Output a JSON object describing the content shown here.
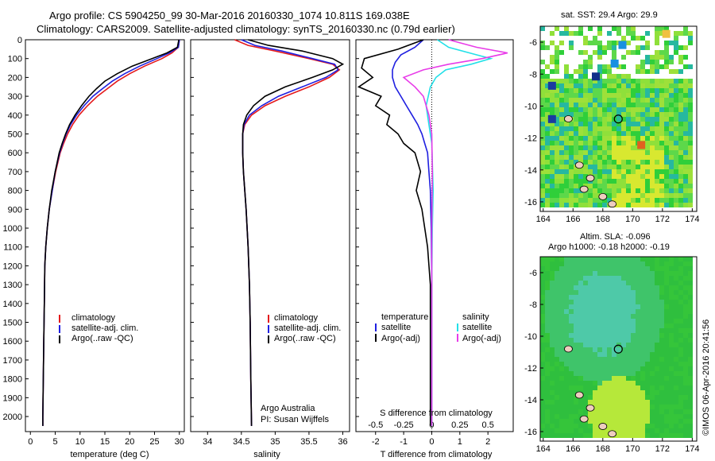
{
  "header": {
    "line1": "Argo profile: CS 5904250_99 30-Mar-2016 20160330_1074 10.811S 169.038E",
    "line2": "Climatology: CARS2009. Satellite-adjusted climatology: synTS_20160330.nc (0.79d earlier)"
  },
  "colors": {
    "climatology": "#e41a1c",
    "satellite": "#1f1fe0",
    "argo": "#000000",
    "sal_satellite": "#22e0e8",
    "sal_argo": "#e83ce8"
  },
  "chart_data": [
    {
      "type": "line",
      "xlabel": "temperature (deg C)",
      "ylabel": "",
      "xlim": [
        -1,
        31
      ],
      "ylim": [
        2080,
        0
      ],
      "xticks": [
        0,
        5,
        10,
        15,
        20,
        25,
        30
      ],
      "yticks": [
        0,
        100,
        200,
        300,
        400,
        500,
        600,
        700,
        800,
        900,
        1000,
        1100,
        1200,
        1300,
        1400,
        1500,
        1600,
        1700,
        1800,
        1900,
        2000
      ],
      "legend": [
        "climatology",
        "satellite-adj. clim.",
        "Argo(..raw -QC)"
      ],
      "series": [
        {
          "name": "climatology",
          "color": "#e41a1c",
          "x": [
            30,
            29.8,
            28.5,
            26.5,
            23,
            20,
            17.5,
            15.5,
            13.5,
            11.5,
            9.8,
            8.5,
            7.5,
            6.7,
            6,
            5.1,
            4.4,
            3.8,
            3.4,
            3.1,
            2.9,
            2.8,
            2.7,
            2.6,
            2.5,
            2.5
          ],
          "y": [
            0,
            40,
            70,
            100,
            140,
            180,
            220,
            260,
            300,
            350,
            400,
            450,
            500,
            550,
            600,
            700,
            800,
            900,
            1000,
            1100,
            1200,
            1400,
            1600,
            1800,
            2000,
            2050
          ]
        },
        {
          "name": "satellite-adj. clim.",
          "color": "#1f1fe0",
          "x": [
            30,
            29.8,
            28,
            25.5,
            22,
            19,
            16.5,
            14.5,
            12.6,
            10.8,
            9.3,
            8.1,
            7.2,
            6.5,
            5.9,
            5.0,
            4.4,
            3.8,
            3.4,
            3.1,
            2.9,
            2.8,
            2.7,
            2.6,
            2.5,
            2.5
          ],
          "y": [
            0,
            40,
            70,
            100,
            140,
            180,
            220,
            260,
            300,
            350,
            400,
            450,
            500,
            550,
            600,
            700,
            800,
            900,
            1000,
            1100,
            1200,
            1400,
            1600,
            1800,
            2000,
            2050
          ]
        },
        {
          "name": "Argo(..raw -QC)",
          "color": "#000000",
          "x": [
            29.9,
            29.6,
            27.5,
            24.5,
            20.5,
            17.5,
            15,
            13.3,
            11.8,
            10.3,
            9,
            7.9,
            7.1,
            6.4,
            5.8,
            5.0,
            4.3,
            3.8,
            3.4,
            3.1,
            2.9,
            2.8,
            2.7,
            2.6,
            2.5,
            2.5
          ],
          "y": [
            0,
            40,
            70,
            100,
            140,
            180,
            220,
            260,
            300,
            350,
            400,
            450,
            500,
            550,
            600,
            700,
            800,
            900,
            1000,
            1100,
            1200,
            1400,
            1600,
            1800,
            2000,
            2050
          ]
        }
      ]
    },
    {
      "type": "line",
      "xlabel": "salinity",
      "ylabel": "",
      "xlim": [
        33.75,
        36.1
      ],
      "ylim": [
        2080,
        0
      ],
      "xticks": [
        34,
        34.5,
        35,
        35.5,
        36
      ],
      "xticklabels": [
        "34",
        "34.5",
        "35",
        "35.5",
        "36"
      ],
      "legend": [
        "climatology",
        "satellite-adj. clim.",
        "Argo(..raw -QC)"
      ],
      "annotation": [
        "Argo Australia",
        "PI: Susan Wijffels"
      ],
      "series": [
        {
          "name": "climatology",
          "color": "#e41a1c",
          "x": [
            34.4,
            34.6,
            35.0,
            35.5,
            35.85,
            35.95,
            35.8,
            35.5,
            35.15,
            34.85,
            34.65,
            34.55,
            34.52,
            34.52,
            34.53,
            34.55,
            34.57,
            34.6,
            34.62,
            34.63,
            34.64,
            34.65
          ],
          "y": [
            0,
            30,
            60,
            100,
            130,
            160,
            200,
            250,
            300,
            350,
            400,
            450,
            500,
            600,
            700,
            800,
            900,
            1100,
            1300,
            1500,
            1800,
            2050
          ]
        },
        {
          "name": "satellite-adj. clim.",
          "color": "#1f1fe0",
          "x": [
            34.5,
            34.7,
            35.1,
            35.55,
            35.88,
            35.93,
            35.75,
            35.4,
            35.05,
            34.8,
            34.62,
            34.54,
            34.52,
            34.52,
            34.53,
            34.55,
            34.57,
            34.6,
            34.62,
            34.63,
            34.64,
            34.65
          ],
          "y": [
            0,
            30,
            60,
            100,
            130,
            160,
            200,
            250,
            300,
            350,
            400,
            450,
            500,
            600,
            700,
            800,
            900,
            1100,
            1300,
            1500,
            1800,
            2050
          ]
        },
        {
          "name": "Argo(..raw -QC)",
          "color": "#000000",
          "x": [
            34.6,
            34.9,
            35.4,
            35.85,
            36.0,
            35.85,
            35.55,
            35.15,
            34.85,
            34.68,
            34.58,
            34.53,
            34.52,
            34.52,
            34.53,
            34.55,
            34.57,
            34.6,
            34.62,
            34.63,
            34.64,
            34.65
          ],
          "y": [
            0,
            30,
            60,
            100,
            130,
            160,
            200,
            250,
            300,
            350,
            400,
            450,
            500,
            600,
            700,
            800,
            900,
            1100,
            1300,
            1500,
            1800,
            2050
          ]
        }
      ]
    },
    {
      "type": "line",
      "xlabel": "T difference from climatology",
      "xlabel_top": "S difference from climatology",
      "ylabel": "",
      "xlim": [
        -2.7,
        2.9
      ],
      "ylim": [
        2080,
        0
      ],
      "xticks": [
        -2,
        -1,
        0,
        1,
        2
      ],
      "xticks_s": [
        -0.5,
        -0.25,
        0,
        0.25,
        0.5
      ],
      "xticklabels_s": [
        "-0.5",
        "-0.25",
        "0",
        "0.25",
        "0.5"
      ],
      "legend_t": [
        "temperature",
        "satellite",
        "Argo(-adj)"
      ],
      "legend_s": [
        "salinity",
        "satellite",
        "Argo(-adj)"
      ],
      "series": [
        {
          "name": "satellite",
          "color": "#1f1fe0",
          "x": [
            -0.3,
            -0.6,
            -1.1,
            -1.3,
            -1.4,
            -1.4,
            -1.3,
            -1.1,
            -0.9,
            -0.7,
            -0.5,
            -0.35,
            -0.25,
            -0.15,
            -0.1,
            -0.05,
            -0.02,
            0,
            0
          ],
          "y": [
            0,
            40,
            80,
            120,
            160,
            200,
            250,
            300,
            350,
            400,
            450,
            500,
            550,
            600,
            700,
            800,
            1000,
            1300,
            2050
          ]
        },
        {
          "name": "Argo(-adj)",
          "color": "#000000",
          "x": [
            -0.3,
            -1.2,
            -2.4,
            -2.5,
            -2.1,
            -2.6,
            -1.8,
            -2.0,
            -1.5,
            -1.6,
            -1.2,
            -1.0,
            -0.6,
            -0.4,
            -0.55,
            -0.35,
            -0.15,
            -0.05,
            -0.05,
            -0.05
          ],
          "y": [
            0,
            50,
            100,
            150,
            200,
            250,
            300,
            350,
            400,
            450,
            500,
            550,
            600,
            700,
            800,
            900,
            1100,
            1300,
            1600,
            2050
          ]
        },
        {
          "name": "satellite",
          "color": "#22e0e8",
          "x": [
            0.2,
            0.6,
            1.6,
            2.1,
            1.4,
            0.5,
            0.15,
            -0.05,
            -0.2,
            -0.1,
            0,
            0.02,
            0.05,
            0.02,
            0,
            0
          ],
          "y": [
            0,
            40,
            80,
            100,
            130,
            160,
            200,
            250,
            350,
            450,
            550,
            650,
            800,
            1000,
            1300,
            2050
          ]
        },
        {
          "name": "Argo(-adj)",
          "color": "#e83ce8",
          "x": [
            0.6,
            1.6,
            2.7,
            1.8,
            0.6,
            -0.3,
            -1.0,
            -0.6,
            -0.3,
            -0.1,
            0,
            0.02,
            0,
            0
          ],
          "y": [
            0,
            40,
            70,
            100,
            130,
            160,
            200,
            250,
            300,
            400,
            500,
            700,
            1000,
            2050
          ]
        }
      ]
    }
  ],
  "maps": {
    "sst_title": "sat. SST: 29.4 Argo: 29.9",
    "sla_title1": "Altim. SLA: -0.096",
    "sla_title2": "Argo h1000: -0.18 h2000: -0.19",
    "xticks": [
      "164",
      "166",
      "168",
      "170",
      "172",
      "174"
    ],
    "yticks": [
      "-6",
      "-8",
      "-10",
      "-12",
      "-14",
      "-16"
    ]
  },
  "credit": "©IMOS 06-Apr-2016 20:41:56"
}
